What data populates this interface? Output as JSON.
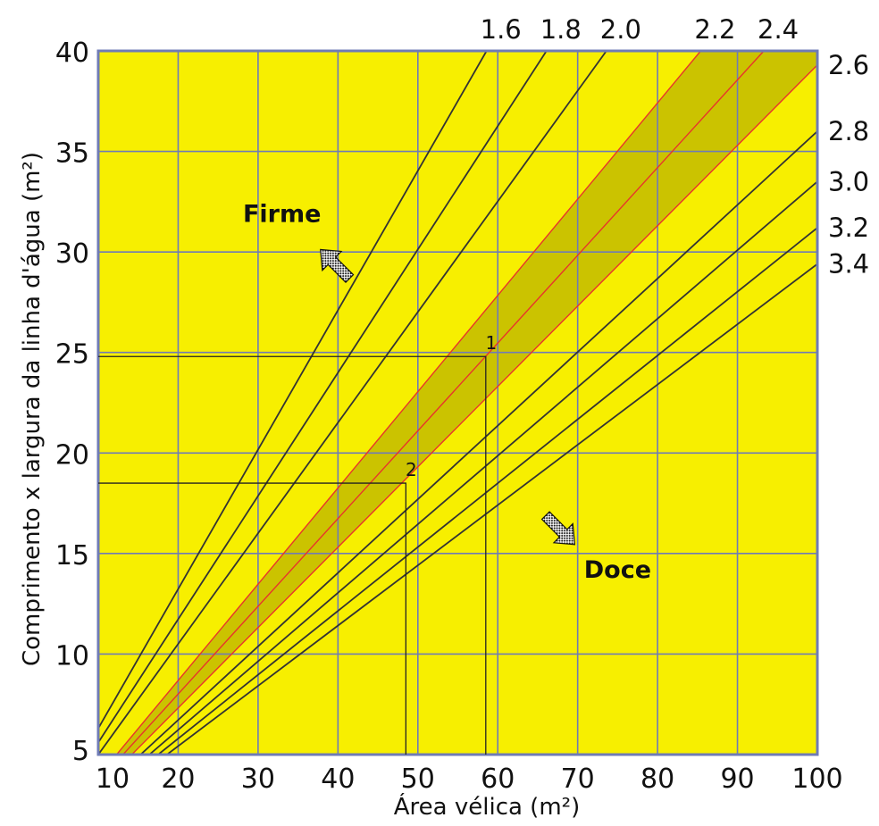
{
  "chart_data": {
    "type": "line",
    "xlabel": "Área vélica (m²)",
    "ylabel": "Comprimento x largura da linha d'água (m²)",
    "xlim": [
      10,
      100
    ],
    "ylim": [
      5,
      40
    ],
    "x_ticks": [
      "10",
      "20",
      "30",
      "40",
      "50",
      "60",
      "70",
      "80",
      "90",
      "100"
    ],
    "y_ticks": [
      "5",
      "10",
      "15",
      "20",
      "25",
      "30",
      "35",
      "40"
    ],
    "grid": true,
    "background_color": "#f7ef00",
    "series": [
      {
        "name": "1.6",
        "points": [
          [
            10,
            6.3
          ],
          [
            58.6,
            40
          ]
        ],
        "color": "#333333"
      },
      {
        "name": "1.8",
        "points": [
          [
            10,
            5.6
          ],
          [
            66.1,
            40
          ]
        ],
        "color": "#333333"
      },
      {
        "name": "2.0",
        "points": [
          [
            10,
            5.0
          ],
          [
            73.6,
            40
          ]
        ],
        "color": "#333333"
      },
      {
        "name": "2.2",
        "points": [
          [
            12.3,
            5
          ],
          [
            85.4,
            40
          ]
        ],
        "color": "#e8342b"
      },
      {
        "name": "2.4",
        "points": [
          [
            13.1,
            5
          ],
          [
            93.3,
            40
          ]
        ],
        "color": "#e8342b"
      },
      {
        "name": "2.6",
        "points": [
          [
            14.2,
            5
          ],
          [
            100,
            39.3
          ]
        ],
        "color": "#e8342b"
      },
      {
        "name": "2.8",
        "points": [
          [
            15.3,
            5
          ],
          [
            100,
            36.0
          ]
        ],
        "color": "#333333"
      },
      {
        "name": "3.0",
        "points": [
          [
            16.4,
            5
          ],
          [
            100,
            33.5
          ]
        ],
        "color": "#333333"
      },
      {
        "name": "3.2",
        "points": [
          [
            17.5,
            5
          ],
          [
            100,
            31.2
          ]
        ],
        "color": "#333333"
      },
      {
        "name": "3.4",
        "points": [
          [
            18.6,
            5
          ],
          [
            100,
            29.4
          ]
        ],
        "color": "#333333"
      }
    ],
    "band": {
      "between": [
        "2.2",
        "2.6"
      ],
      "color": "#cbc300"
    },
    "annotations": [
      {
        "label": "1",
        "x": 58.5,
        "y": 24.8
      },
      {
        "label": "2",
        "x": 48.5,
        "y": 18.5
      }
    ],
    "regions": [
      {
        "label": "Firme",
        "x": 33,
        "y": 31.5
      },
      {
        "label": "Doce",
        "x": 75,
        "y": 13.8
      }
    ]
  }
}
